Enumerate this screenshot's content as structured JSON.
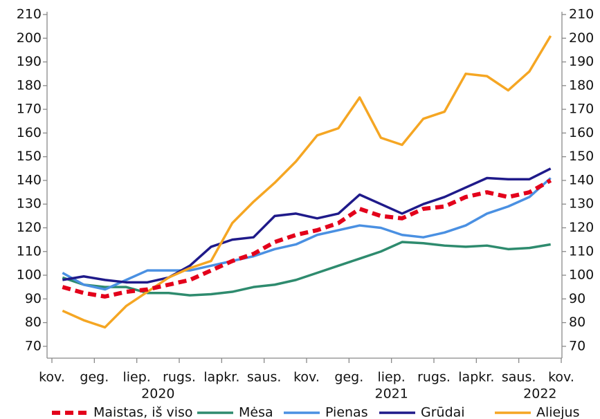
{
  "chart_data": {
    "type": "line",
    "x_tick_labels": [
      "kov.",
      "geg.",
      "liep.",
      "rugs.",
      "lapkr.",
      "saus.",
      "kov.",
      "geg.",
      "liep.",
      "rugs.",
      "lapkr.",
      "saus.",
      "kov."
    ],
    "year_labels": [
      "2020",
      "2021",
      "2022"
    ],
    "ylim": [
      65,
      210
    ],
    "yticks": [
      70,
      80,
      90,
      100,
      110,
      120,
      130,
      140,
      150,
      160,
      170,
      180,
      190,
      200,
      210
    ],
    "y2lim": [
      65,
      210
    ],
    "y2ticks": [
      70,
      80,
      90,
      100,
      110,
      120,
      130,
      140,
      150,
      160,
      170,
      180,
      190,
      200,
      210
    ],
    "grid": false,
    "series": [
      {
        "name": "Maistas, iš viso",
        "color": "#e3001b",
        "dashed": true,
        "values": [
          95,
          92.5,
          91,
          93,
          94,
          96,
          98,
          102,
          106,
          109,
          114,
          117,
          119,
          122,
          128,
          125,
          124,
          128,
          129,
          133,
          135,
          133,
          135,
          140
        ]
      },
      {
        "name": "Mėsa",
        "color": "#2e8b6e",
        "values": [
          99,
          96,
          95,
          95,
          92.5,
          92.5,
          91.5,
          92,
          93,
          95,
          96,
          98,
          101,
          104,
          107,
          110,
          114,
          113.5,
          112.5,
          112,
          112.5,
          111,
          111.5,
          113
        ]
      },
      {
        "name": "Pienas",
        "color": "#4a90e2",
        "values": [
          101,
          96,
          94,
          98,
          102,
          102,
          102,
          104,
          106,
          108,
          111,
          113,
          117,
          119,
          121,
          120,
          117,
          116,
          118,
          121,
          126,
          129,
          133,
          141
        ]
      },
      {
        "name": "Grūdai",
        "color": "#1f1a8a",
        "values": [
          98,
          99.5,
          98,
          97,
          97,
          99,
          104,
          112,
          115,
          116,
          125,
          126,
          124,
          126,
          134,
          130,
          126,
          130,
          133,
          137,
          141,
          140.5,
          140.5,
          145
        ]
      },
      {
        "name": "Aliejus",
        "color": "#f5a623",
        "values": [
          85,
          81,
          78,
          87,
          93,
          99,
          103,
          106,
          122,
          131,
          139,
          148,
          159,
          162,
          175,
          158,
          155,
          166,
          169,
          185,
          184,
          178,
          186,
          201
        ]
      }
    ]
  }
}
